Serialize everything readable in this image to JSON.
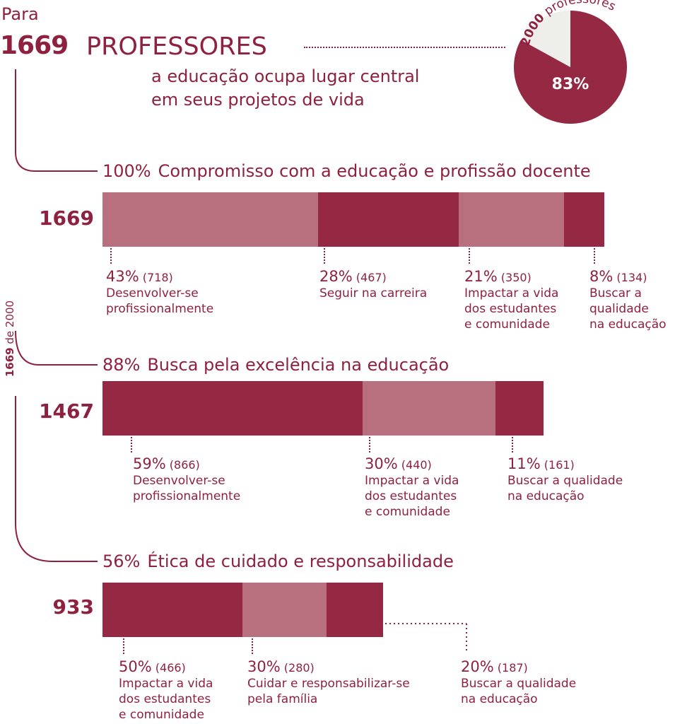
{
  "header": {
    "para": "Para",
    "count": "1669",
    "word": "PROFESSORES",
    "line1": "a educação ocupa lugar central",
    "line2": "em seus projetos de vida"
  },
  "pie": {
    "top_num": "2000",
    "top_word": "professores",
    "pct_label": "83%",
    "fraction": 0.83
  },
  "side_label": {
    "num": "1669",
    "text": "de 2000"
  },
  "colors": {
    "dark": "#952842",
    "light": "#b8707e",
    "text": "#8f2140",
    "pie_bg": "#eeeeea"
  },
  "chart_data": [
    {
      "type": "bar",
      "stacked": true,
      "title_pct": "100%",
      "title": "Compromisso com a educação e profissão docente",
      "total": "1669",
      "segments": [
        {
          "pct": "43%",
          "count": "(718)",
          "value": 718,
          "shade": "light",
          "label": [
            "Desenvolver-se",
            "profissionalmente"
          ]
        },
        {
          "pct": "28%",
          "count": "(467)",
          "value": 467,
          "shade": "dark",
          "label": [
            "Seguir na carreira"
          ]
        },
        {
          "pct": "21%",
          "count": "(350)",
          "value": 350,
          "shade": "light",
          "label": [
            "Impactar a vida",
            "dos estudantes",
            "e comunidade"
          ]
        },
        {
          "pct": "8%",
          "count": "(134)",
          "value": 134,
          "shade": "dark",
          "label": [
            "Buscar a",
            "qualidade",
            "na educação"
          ]
        }
      ]
    },
    {
      "type": "bar",
      "stacked": true,
      "title_pct": "88%",
      "title": "Busca pela excelência na educação",
      "total": "1467",
      "segments": [
        {
          "pct": "59%",
          "count": "(866)",
          "value": 866,
          "shade": "dark",
          "label": [
            "Desenvolver-se",
            "profissionalmente"
          ]
        },
        {
          "pct": "30%",
          "count": "(440)",
          "value": 440,
          "shade": "light",
          "label": [
            "Impactar a vida",
            "dos estudantes",
            "e comunidade"
          ]
        },
        {
          "pct": "11%",
          "count": "(161)",
          "value": 161,
          "shade": "dark",
          "label": [
            "Buscar a qualidade",
            "na educação"
          ]
        }
      ]
    },
    {
      "type": "bar",
      "stacked": true,
      "title_pct": "56%",
      "title": "Ética de cuidado e responsabilidade",
      "total": "933",
      "segments": [
        {
          "pct": "50%",
          "count": "(466)",
          "value": 466,
          "shade": "dark",
          "label": [
            "Impactar a vida",
            "dos estudantes",
            "e comunidade"
          ]
        },
        {
          "pct": "30%",
          "count": "(280)",
          "value": 280,
          "shade": "light",
          "label": [
            "Cuidar e responsabilizar-se",
            "pela família"
          ]
        },
        {
          "pct": "20%",
          "count": "(187)",
          "value": 187,
          "shade": "dark",
          "label": [
            "Buscar a qualidade",
            "na educação"
          ]
        }
      ]
    }
  ]
}
